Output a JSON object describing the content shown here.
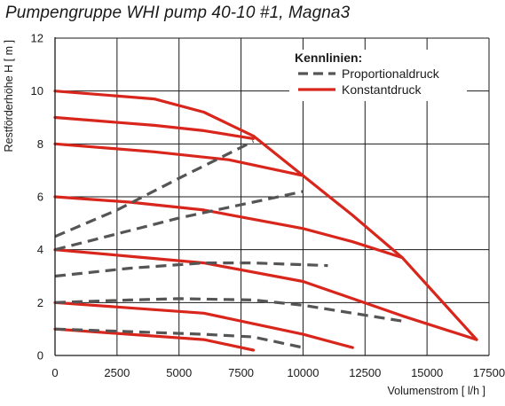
{
  "header": {
    "title": "Pumpengruppe WHI pump 40-10 #1, Magna3"
  },
  "chart_data": {
    "type": "line",
    "title": "Pumpengruppe WHI pump 40-10 #1, Magna3",
    "xlabel": "Volumenstrom [ l/h ]",
    "ylabel": "Restförderhöhe H [ m ]",
    "xlim": [
      0,
      17500
    ],
    "ylim": [
      0,
      12
    ],
    "x_ticks": [
      "0",
      "2500",
      "5000",
      "7500",
      "10000",
      "12500",
      "15000",
      "17500"
    ],
    "y_ticks": [
      "0",
      "2",
      "4",
      "6",
      "8",
      "10",
      "12"
    ],
    "grid": true,
    "legend": {
      "title": "Kennlinien:",
      "position": "top-right",
      "entries": [
        {
          "label": "Proportionaldruck",
          "style": "dashed",
          "color": "#555555"
        },
        {
          "label": "Konstantdruck",
          "style": "solid",
          "color": "#d9261c"
        }
      ]
    },
    "series": [
      {
        "kind": "Konstantdruck",
        "points": [
          [
            0,
            10
          ],
          [
            4000,
            9.7
          ],
          [
            6000,
            9.2
          ],
          [
            8000,
            8.3
          ],
          [
            10000,
            6.8
          ],
          [
            12000,
            5.3
          ],
          [
            14000,
            3.7
          ],
          [
            17000,
            0.6
          ]
        ]
      },
      {
        "kind": "Konstantdruck",
        "points": [
          [
            0,
            9
          ],
          [
            4000,
            8.7
          ],
          [
            6000,
            8.5
          ],
          [
            8000,
            8.2
          ]
        ]
      },
      {
        "kind": "Konstantdruck",
        "points": [
          [
            0,
            8
          ],
          [
            4000,
            7.7
          ],
          [
            7000,
            7.4
          ],
          [
            10000,
            6.8
          ]
        ]
      },
      {
        "kind": "Konstantdruck",
        "points": [
          [
            0,
            6
          ],
          [
            3000,
            5.8
          ],
          [
            6000,
            5.5
          ],
          [
            10000,
            4.8
          ],
          [
            12000,
            4.3
          ],
          [
            14000,
            3.7
          ]
        ]
      },
      {
        "kind": "Konstantdruck",
        "points": [
          [
            0,
            4
          ],
          [
            3000,
            3.75
          ],
          [
            6000,
            3.5
          ],
          [
            10000,
            2.8
          ],
          [
            14000,
            1.5
          ],
          [
            17000,
            0.6
          ]
        ]
      },
      {
        "kind": "Konstantdruck",
        "points": [
          [
            0,
            2
          ],
          [
            3000,
            1.8
          ],
          [
            6000,
            1.6
          ],
          [
            8000,
            1.2
          ],
          [
            10000,
            0.8
          ],
          [
            12000,
            0.3
          ]
        ]
      },
      {
        "kind": "Konstantdruck",
        "points": [
          [
            0,
            1
          ],
          [
            3000,
            0.8
          ],
          [
            6000,
            0.6
          ],
          [
            8000,
            0.2
          ]
        ]
      },
      {
        "kind": "Proportionaldruck",
        "points": [
          [
            0,
            4.5
          ],
          [
            2500,
            5.5
          ],
          [
            5000,
            6.7
          ],
          [
            8000,
            8.1
          ]
        ]
      },
      {
        "kind": "Proportionaldruck",
        "points": [
          [
            0,
            4
          ],
          [
            2500,
            4.6
          ],
          [
            5000,
            5.2
          ],
          [
            8000,
            5.8
          ],
          [
            10000,
            6.2
          ]
        ]
      },
      {
        "kind": "Proportionaldruck",
        "points": [
          [
            0,
            3
          ],
          [
            3000,
            3.3
          ],
          [
            6000,
            3.5
          ],
          [
            8000,
            3.5
          ],
          [
            11000,
            3.4
          ]
        ]
      },
      {
        "kind": "Proportionaldruck",
        "points": [
          [
            0,
            2
          ],
          [
            3000,
            2.1
          ],
          [
            5000,
            2.15
          ],
          [
            8000,
            2.1
          ],
          [
            10000,
            1.9
          ],
          [
            14000,
            1.3
          ]
        ]
      },
      {
        "kind": "Proportionaldruck",
        "points": [
          [
            0,
            1
          ],
          [
            3000,
            0.9
          ],
          [
            6000,
            0.8
          ],
          [
            8000,
            0.7
          ],
          [
            10000,
            0.3
          ]
        ]
      }
    ]
  }
}
